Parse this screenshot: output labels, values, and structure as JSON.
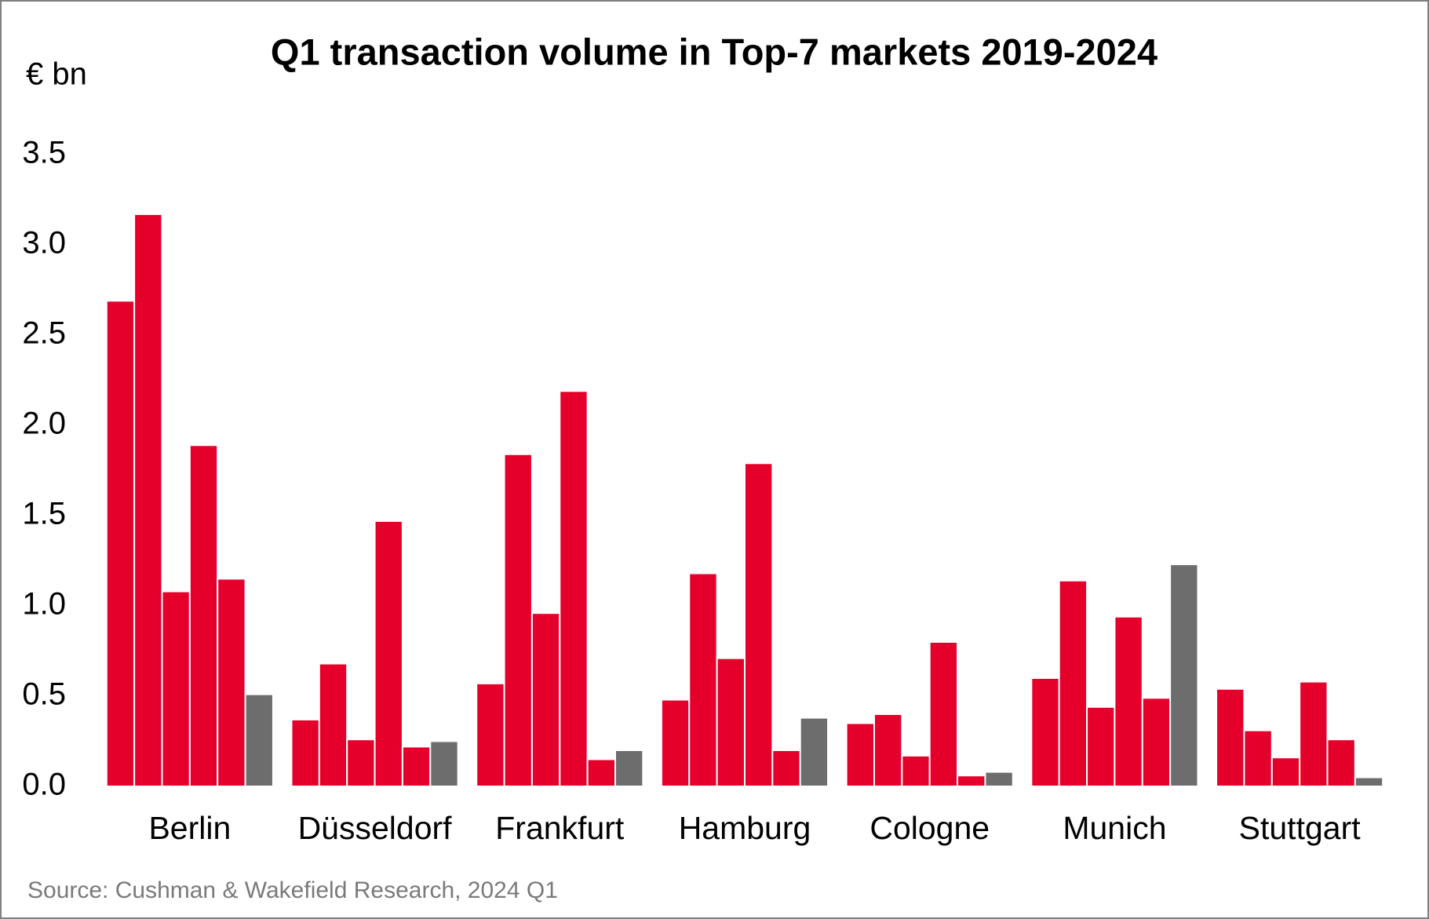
{
  "chart_data": {
    "type": "bar",
    "title": "Q1 transaction volume in Top-7 markets 2019-2024",
    "y_label": "€ bn",
    "source": "Source: Cushman & Wakefield Research, 2024 Q1",
    "categories": [
      "Berlin",
      "Düsseldorf",
      "Frankfurt",
      "Hamburg",
      "Cologne",
      "Munich",
      "Stuttgart"
    ],
    "series": [
      {
        "color": "#e4002b",
        "values": [
          2.69,
          0.37,
          0.57,
          0.48,
          0.35,
          0.6,
          0.54
        ]
      },
      {
        "color": "#e4002b",
        "values": [
          3.17,
          0.68,
          1.84,
          1.18,
          0.4,
          1.14,
          0.31
        ]
      },
      {
        "color": "#e4002b",
        "values": [
          1.08,
          0.26,
          0.96,
          0.71,
          0.17,
          0.44,
          0.16
        ]
      },
      {
        "color": "#e4002b",
        "values": [
          1.89,
          1.47,
          2.19,
          1.79,
          0.8,
          0.94,
          0.58
        ]
      },
      {
        "color": "#e4002b",
        "values": [
          1.15,
          0.22,
          0.15,
          0.2,
          0.06,
          0.49,
          0.26
        ]
      },
      {
        "color": "#6d6d6d",
        "values": [
          0.51,
          0.25,
          0.2,
          0.38,
          0.08,
          1.23,
          0.05
        ]
      }
    ],
    "ylim": [
      0,
      3.5
    ],
    "yticks": [
      {
        "value": 0,
        "label": "0.0"
      },
      0.5,
      {
        "value": 1,
        "label": "1.0"
      },
      1.5,
      {
        "value": 2,
        "label": "2.0"
      },
      2.5,
      {
        "value": 3,
        "label": "3.0"
      },
      3.5
    ],
    "grid": false
  }
}
